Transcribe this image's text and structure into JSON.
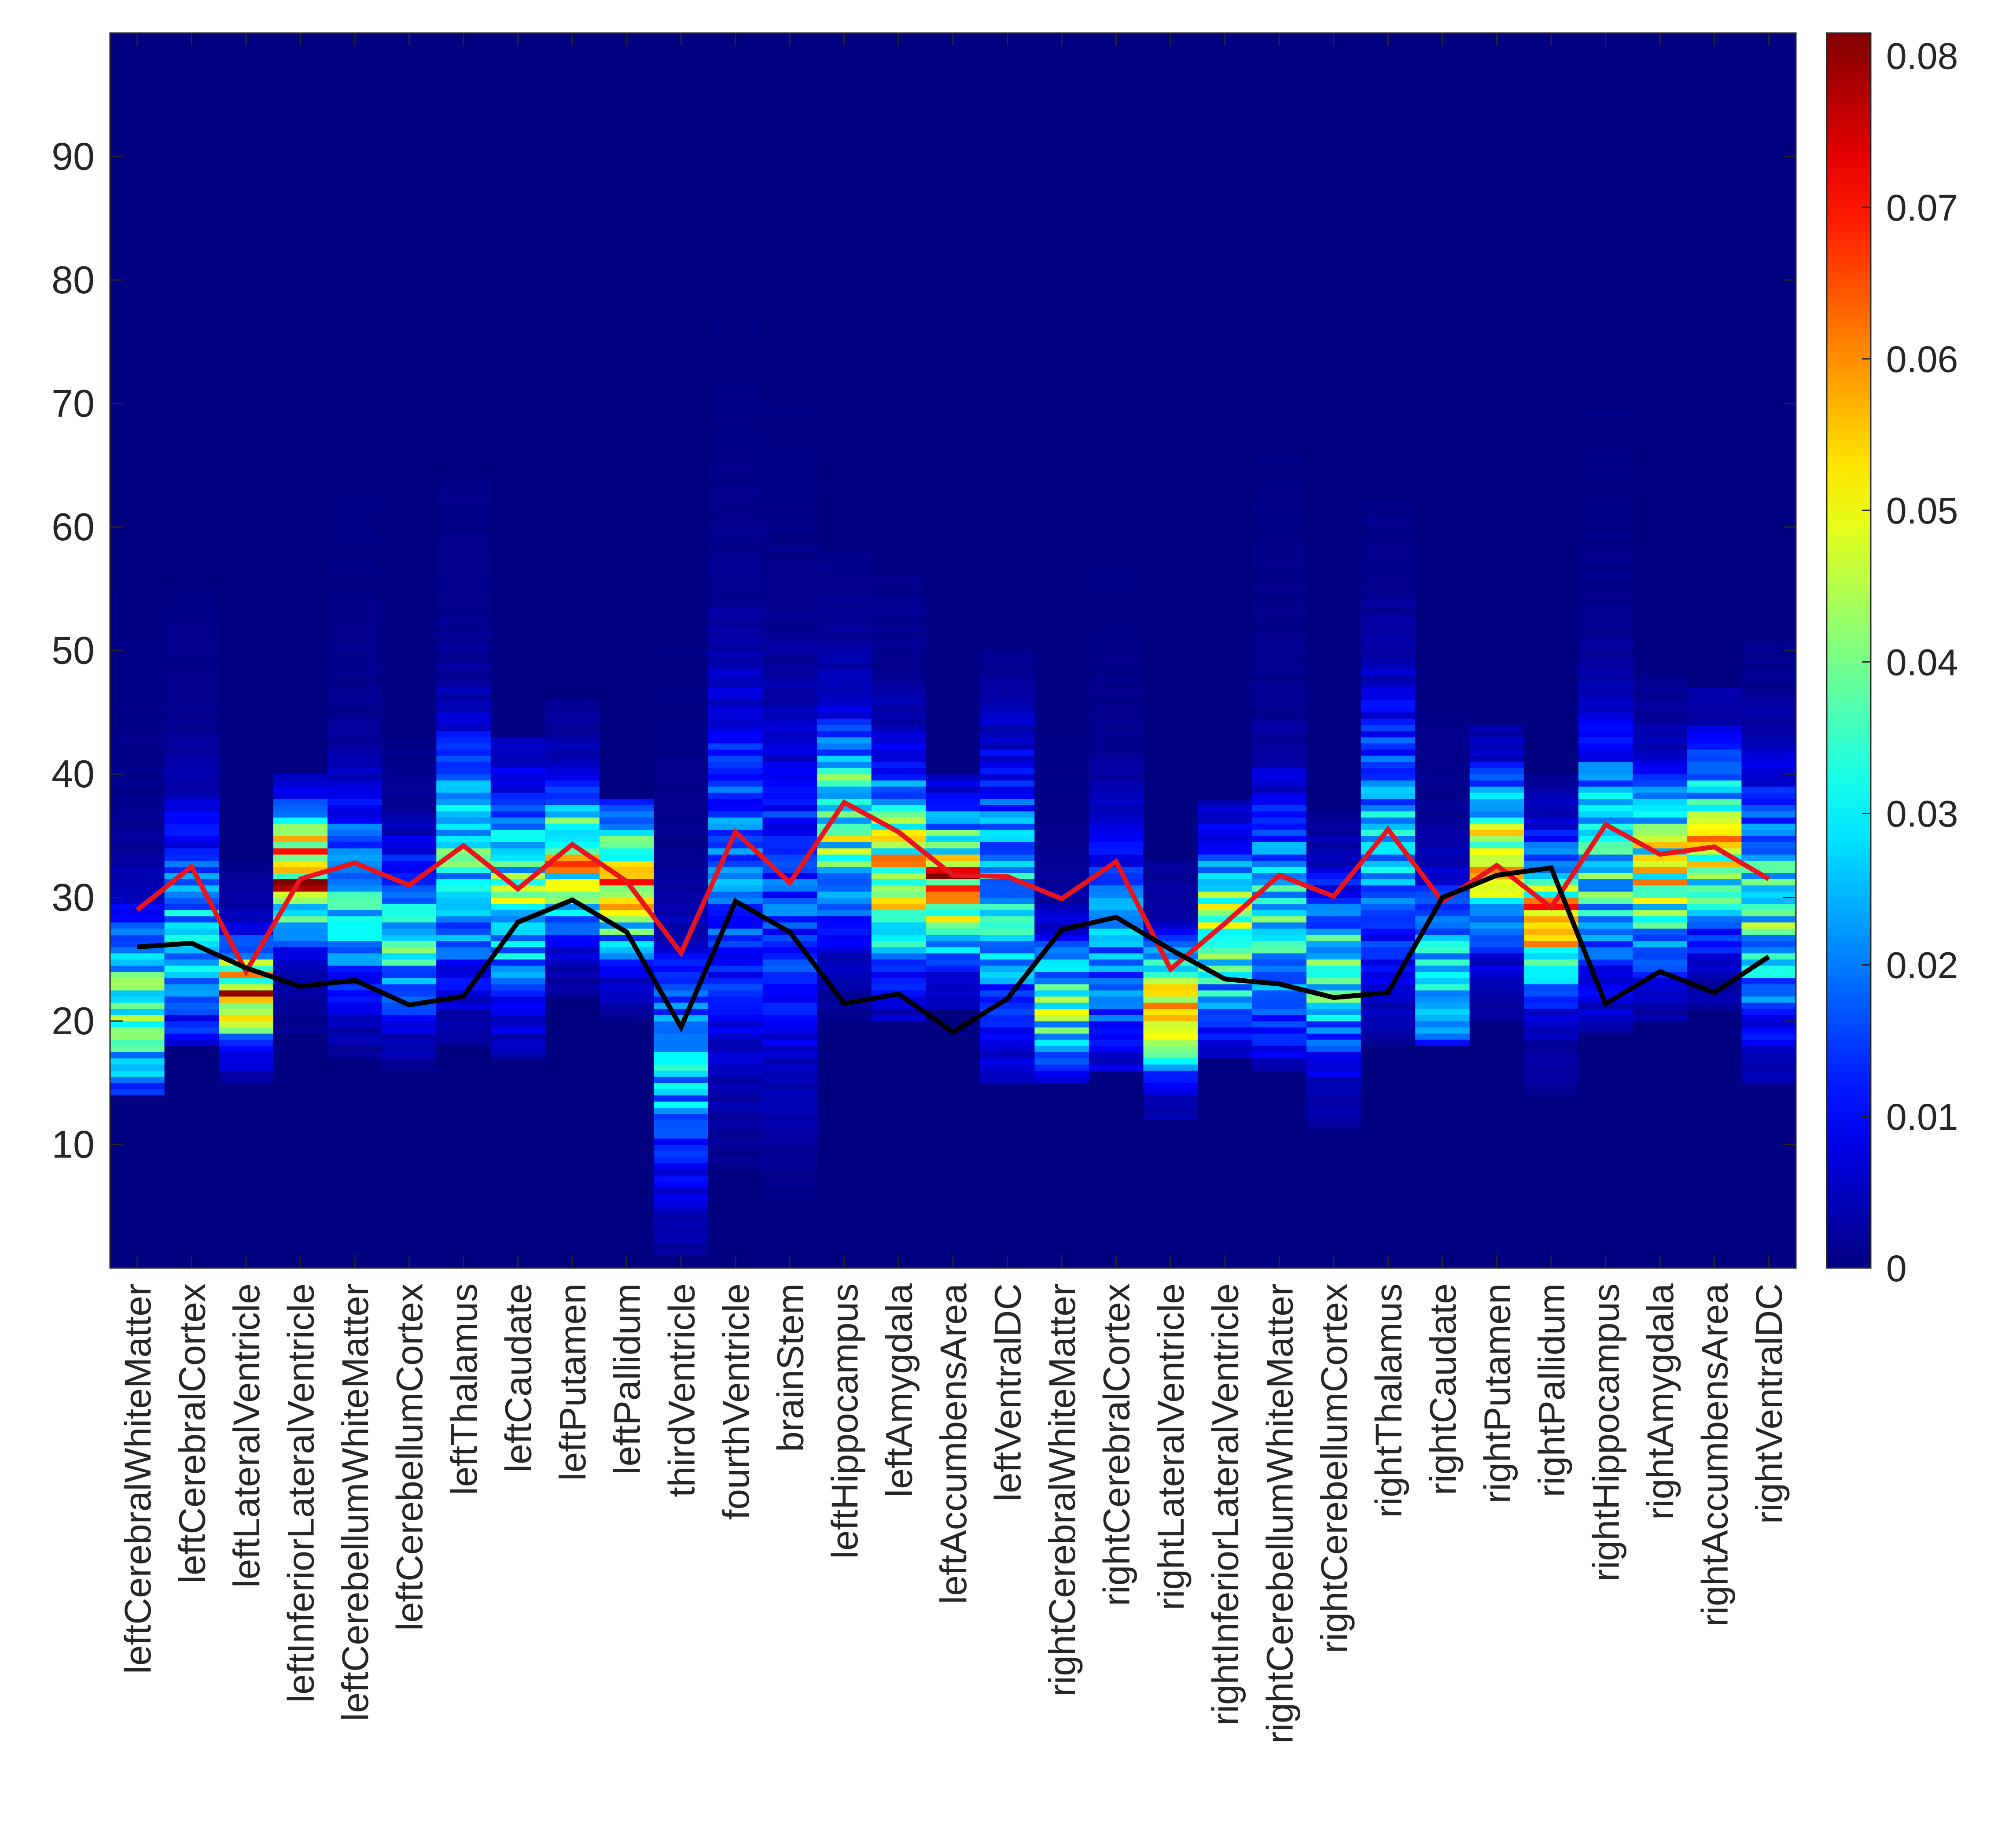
{
  "chart_data": {
    "type": "heatmap",
    "title": "",
    "xlabel": "",
    "ylabel": "",
    "categories": [
      "leftCerebralWhiteMatter",
      "leftCerebralCortex",
      "leftLateralVentricle",
      "leftInferiorLateralVentricle",
      "leftCerebellumWhiteMatter",
      "leftCerebellumCortex",
      "leftThalamus",
      "leftCaudate",
      "leftPutamen",
      "leftPallidum",
      "thirdVentricle",
      "fourthVentricle",
      "brainStem",
      "leftHippocampus",
      "leftAmygdala",
      "leftAccumbensArea",
      "leftVentralDC",
      "rightCerebralWhiteMatter",
      "rightCerebralCortex",
      "rightLateralVentricle",
      "rightInferiorLateralVentricle",
      "rightCerebellumWhiteMatter",
      "rightCerebellumCortex",
      "rightThalamus",
      "rightCaudate",
      "rightPutamen",
      "rightPallidum",
      "rightHippocampus",
      "rightAmygdala",
      "rightAccumbensArea",
      "rightVentralDC"
    ],
    "ylim": [
      0,
      100
    ],
    "yticks": [
      10,
      20,
      30,
      40,
      50,
      60,
      70,
      80,
      90
    ],
    "yticklabels": [
      "10",
      "20",
      "30",
      "40",
      "50",
      "60",
      "70",
      "80",
      "90"
    ],
    "colormap": "jet",
    "clim": [
      0,
      0.0815
    ],
    "colorbar_ticks": [
      0,
      0.01,
      0.02,
      0.03,
      0.04,
      0.05,
      0.06,
      0.07,
      0.08
    ],
    "colorbar_ticklabels": [
      "0",
      "0.01",
      "0.02",
      "0.03",
      "0.04",
      "0.05",
      "0.06",
      "0.07",
      "0.08"
    ],
    "distributions": [
      {
        "peak": 21,
        "spread": 4.5,
        "max": 0.033,
        "extent": [
          14,
          55
        ]
      },
      {
        "peak": 27,
        "spread": 6,
        "max": 0.022,
        "extent": [
          18,
          55
        ]
      },
      {
        "peak": 22,
        "spread": 2.5,
        "max": 0.052,
        "extent": [
          15,
          33
        ]
      },
      {
        "peak": 32,
        "spread": 3,
        "max": 0.055,
        "extent": [
          19,
          40
        ]
      },
      {
        "peak": 30,
        "spread": 5,
        "max": 0.026,
        "extent": [
          17,
          68
        ]
      },
      {
        "peak": 27,
        "spread": 4,
        "max": 0.03,
        "extent": [
          16,
          43
        ]
      },
      {
        "peak": 33,
        "spread": 6,
        "max": 0.028,
        "extent": [
          18,
          64
        ]
      },
      {
        "peak": 30,
        "spread": 5.5,
        "max": 0.032,
        "extent": [
          17,
          43
        ]
      },
      {
        "peak": 33,
        "spread": 3.5,
        "max": 0.042,
        "extent": [
          22,
          46
        ]
      },
      {
        "peak": 31,
        "spread": 3.5,
        "max": 0.045,
        "extent": [
          20,
          38
        ]
      },
      {
        "peak": 16,
        "spread": 6,
        "max": 0.022,
        "extent": [
          1,
          64
        ]
      },
      {
        "peak": 32,
        "spread": 9,
        "max": 0.018,
        "extent": [
          8,
          80
        ]
      },
      {
        "peak": 30,
        "spread": 9,
        "max": 0.014,
        "extent": [
          5,
          70
        ]
      },
      {
        "peak": 36,
        "spread": 5,
        "max": 0.036,
        "extent": [
          20,
          58
        ]
      },
      {
        "peak": 32,
        "spread": 5,
        "max": 0.042,
        "extent": [
          20,
          56
        ]
      },
      {
        "peak": 31,
        "spread": 3.5,
        "max": 0.055,
        "extent": [
          21,
          40
        ]
      },
      {
        "peak": 30,
        "spread": 7,
        "max": 0.026,
        "extent": [
          15,
          50
        ]
      },
      {
        "peak": 21,
        "spread": 3.5,
        "max": 0.032,
        "extent": [
          15,
          55
        ]
      },
      {
        "peak": 26,
        "spread": 6,
        "max": 0.02,
        "extent": [
          16,
          58
        ]
      },
      {
        "peak": 21,
        "spread": 3,
        "max": 0.05,
        "extent": [
          12,
          33
        ]
      },
      {
        "peak": 27,
        "spread": 4.5,
        "max": 0.038,
        "extent": [
          17,
          38
        ]
      },
      {
        "peak": 28,
        "spread": 6,
        "max": 0.028,
        "extent": [
          16,
          67
        ]
      },
      {
        "peak": 24,
        "spread": 4.5,
        "max": 0.03,
        "extent": [
          11,
          37
        ]
      },
      {
        "peak": 35,
        "spread": 7,
        "max": 0.022,
        "extent": [
          18,
          62
        ]
      },
      {
        "peak": 24,
        "spread": 4,
        "max": 0.032,
        "extent": [
          18,
          45
        ]
      },
      {
        "peak": 33,
        "spread": 4,
        "max": 0.043,
        "extent": [
          20,
          44
        ]
      },
      {
        "peak": 28,
        "spread": 3.5,
        "max": 0.052,
        "extent": [
          14,
          40
        ]
      },
      {
        "peak": 33,
        "spread": 6,
        "max": 0.03,
        "extent": [
          19,
          71
        ]
      },
      {
        "peak": 32,
        "spread": 4.5,
        "max": 0.04,
        "extent": [
          20,
          48
        ]
      },
      {
        "peak": 34,
        "spread": 4.5,
        "max": 0.04,
        "extent": [
          21,
          47
        ]
      },
      {
        "peak": 29,
        "spread": 6,
        "max": 0.03,
        "extent": [
          15,
          51
        ]
      }
    ],
    "series": [
      {
        "color": "#e8141e",
        "values": [
          29,
          32.5,
          24,
          31.5,
          32.8,
          31,
          34.2,
          30.7,
          34.3,
          31.3,
          25.5,
          35.3,
          31.2,
          37.7,
          35.3,
          31.8,
          31.7,
          29.9,
          32.9,
          24.2,
          27.9,
          31.8,
          30.1,
          35.5,
          29.7,
          32.6,
          29.2,
          35.9,
          33.5,
          34.1,
          31.5
        ]
      },
      {
        "color": "#000000",
        "values": [
          26,
          26.3,
          24.3,
          22.8,
          23.3,
          21.3,
          22,
          28,
          29.8,
          27.2,
          19.5,
          29.7,
          27.2,
          21.4,
          22.2,
          19.1,
          21.8,
          27.4,
          28.4,
          25.8,
          23.4,
          23,
          21.9,
          22.3,
          30,
          31.8,
          32.4,
          21.4,
          24,
          22.3,
          25.2
        ]
      }
    ],
    "grid": false,
    "legend": "none"
  }
}
